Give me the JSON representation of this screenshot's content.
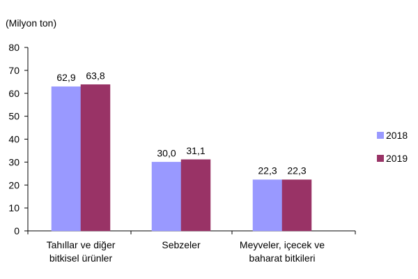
{
  "chart_data": {
    "type": "bar",
    "unit_label": "(Milyon ton)",
    "categories": [
      [
        "Tahıllar ve diğer",
        "bitkisel ürünler"
      ],
      [
        "Sebzeler"
      ],
      [
        "Meyveler, içecek ve",
        "baharat bitkileri"
      ]
    ],
    "series": [
      {
        "name": "2018",
        "values": [
          62.9,
          30.0,
          22.3
        ],
        "labels": [
          "62,9",
          "30,0",
          "22,3"
        ],
        "color": "#9999FF"
      },
      {
        "name": "2019",
        "values": [
          63.8,
          31.1,
          22.3
        ],
        "labels": [
          "63,8",
          "31,1",
          "22,3"
        ],
        "color": "#993366"
      }
    ],
    "ylim": [
      0,
      80
    ],
    "yticks": [
      0,
      10,
      20,
      30,
      40,
      50,
      60,
      70,
      80
    ],
    "grid": false,
    "legend_position": "right"
  }
}
